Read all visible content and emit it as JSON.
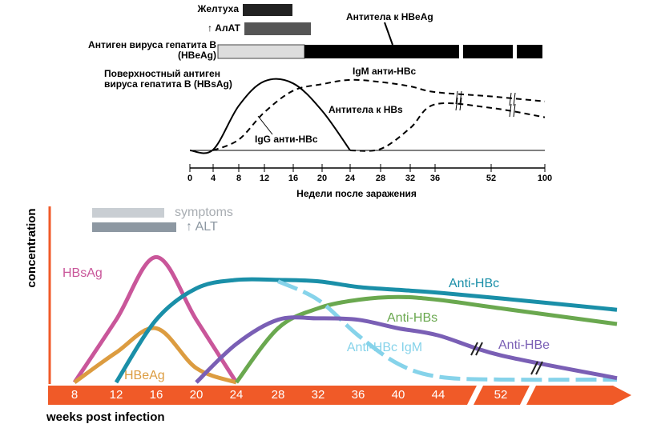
{
  "chart_data": [
    {
      "type": "line",
      "bars": {
        "jaundice": "Желтуха",
        "alt": "↑ АлАТ",
        "hbeag": "Антиген вируса гепатита В (HBeAg)",
        "anti_hbe": "Антитела к HBeAg"
      },
      "categories": [
        "0",
        "4",
        "8",
        "12",
        "16",
        "20",
        "24",
        "28",
        "32",
        "36",
        "52",
        "100"
      ],
      "ylim": [
        0,
        100
      ],
      "xlabel": "Недели после заражения",
      "annotations": [
        "IgG анти-HBc"
      ],
      "series": [
        {
          "name": "Поверхностный антиген вируса гепатита В (HBsAg)",
          "color": "#000000",
          "style": "solid",
          "values": [
            0,
            1,
            62,
            96,
            93,
            55,
            0,
            null,
            null,
            null,
            null,
            null
          ]
        },
        {
          "name": "IgM анти-HBc",
          "color": "#000000",
          "style": "dashed",
          "values": [
            null,
            0,
            15,
            53,
            83,
            92,
            98,
            95,
            89,
            81,
            75,
            68
          ]
        },
        {
          "name": "Антитела к HBs",
          "color": "#000000",
          "style": "dashed",
          "values": [
            null,
            null,
            null,
            null,
            null,
            null,
            0,
            2,
            31,
            64,
            59,
            46
          ]
        }
      ]
    },
    {
      "type": "line",
      "bars": {
        "symptoms": "symptoms",
        "alt": "↑ ALT"
      },
      "ylabel": "concentration",
      "xlabel": "weeks post infection",
      "categories": [
        "8",
        "12",
        "16",
        "20",
        "24",
        "28",
        "32",
        "36",
        "40",
        "44",
        "52",
        null
      ],
      "ylim": [
        0,
        100
      ],
      "series": [
        {
          "name": "HBsAg",
          "color": "#c9569a",
          "style": "solid",
          "values": [
            0,
            44,
            88,
            44,
            0,
            null,
            null,
            null,
            null,
            null,
            null,
            null
          ]
        },
        {
          "name": "HBeAg",
          "color": "#dc9c40",
          "style": "solid",
          "values": [
            0,
            21,
            38,
            10,
            0,
            null,
            null,
            null,
            null,
            null,
            null,
            null
          ]
        },
        {
          "name": "Anti-HBc",
          "color": "#1a8fa8",
          "style": "solid",
          "values": [
            null,
            0,
            44,
            66,
            72,
            72,
            71,
            67,
            65,
            63,
            59,
            51
          ]
        },
        {
          "name": "Anti-HBs",
          "color": "#6aa84f",
          "style": "solid",
          "values": [
            null,
            null,
            null,
            null,
            0,
            38,
            52,
            58,
            60,
            58,
            52,
            41
          ]
        },
        {
          "name": "Anti-HBc IgM",
          "color": "#86d3ea",
          "style": "dashed",
          "values": [
            null,
            null,
            null,
            null,
            null,
            71,
            58,
            33,
            13,
            4,
            2,
            2
          ]
        },
        {
          "name": "Anti-HBe",
          "color": "#7a5fb5",
          "style": "solid",
          "values": [
            null,
            null,
            null,
            0,
            27,
            44,
            45,
            44,
            38,
            33,
            19,
            3
          ]
        }
      ]
    }
  ]
}
